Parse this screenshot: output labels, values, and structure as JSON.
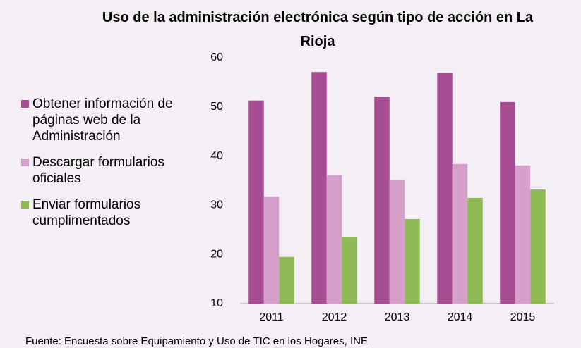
{
  "chart_data": {
    "type": "bar",
    "title": "Uso de la administración electrónica según tipo de acción en La Rioja",
    "source": "Fuente: Encuesta sobre Equipamiento y Uso de TIC en los Hogares, INE",
    "categories": [
      "2011",
      "2012",
      "2013",
      "2014",
      "2015"
    ],
    "series": [
      {
        "name": "Obtener información de páginas web de la Administración",
        "color": "#a64d94",
        "values": [
          51.3,
          57.1,
          52.1,
          56.9,
          51.0
        ]
      },
      {
        "name": "Descargar formularios oficiales",
        "color": "#d6a0ca",
        "values": [
          31.8,
          36.1,
          35.1,
          38.4,
          38.1
        ]
      },
      {
        "name": "Enviar formularios cumplimentados",
        "color": "#8fba55",
        "values": [
          19.5,
          23.6,
          27.2,
          31.5,
          33.2
        ]
      }
    ],
    "ylim": [
      10,
      60
    ],
    "yticks": [
      10,
      20,
      30,
      40,
      50,
      60
    ],
    "grid": false,
    "legend": "left"
  }
}
